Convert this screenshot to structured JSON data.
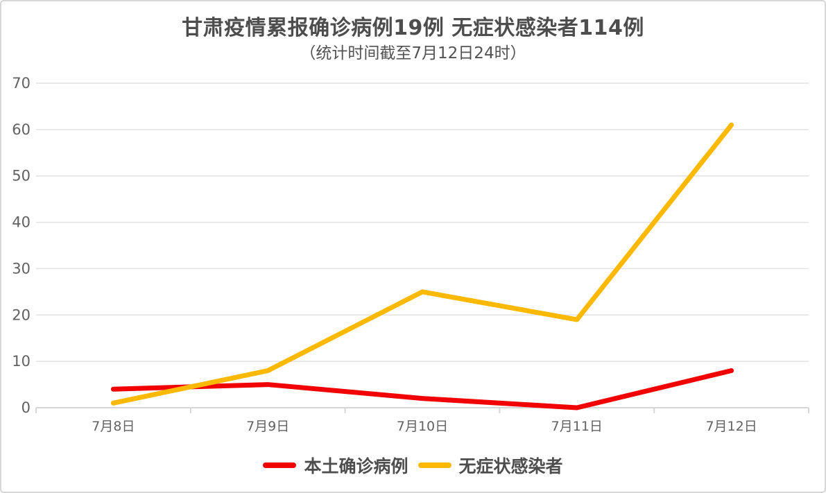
{
  "chart_data": {
    "type": "line",
    "title": "甘肃疫情累报确诊病例19例 无症状感染者114例",
    "subtitle": "（统计时间截至7月12日24时）",
    "categories": [
      "7月8日",
      "7月9日",
      "7月10日",
      "7月11日",
      "7月12日"
    ],
    "series": [
      {
        "name": "本土确诊病例",
        "color": "#f20000",
        "values": [
          4,
          5,
          2,
          0,
          8
        ]
      },
      {
        "name": "无症状感染者",
        "color": "#fcb900",
        "values": [
          1,
          8,
          25,
          19,
          61
        ]
      }
    ],
    "ylim": [
      0,
      70
    ],
    "yticks": [
      0,
      10,
      20,
      30,
      40,
      50,
      60,
      70
    ],
    "grid": true,
    "legend_position": "bottom",
    "xlabel": "",
    "ylabel": ""
  },
  "colors": {
    "title_text": "#4d4d4d",
    "axis_text": "#616161",
    "gridline": "#e2e2e2",
    "axis_line": "#d6d6d6",
    "tick_mark": "#d6d6d6",
    "background": "#ffffff",
    "card_border": "#d6d6d6",
    "series_confirmed_red": "#f20000",
    "series_asymptomatic_yellow": "#fcb900"
  }
}
